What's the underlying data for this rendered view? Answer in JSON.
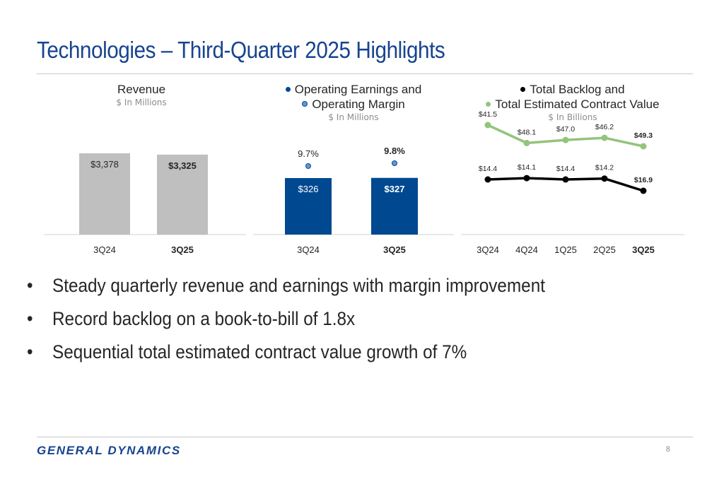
{
  "page": {
    "title": "Technologies – Third-Quarter 2025 Highlights",
    "bullet_char": "•",
    "bullets": [
      "Steady quarterly revenue and earnings with margin improvement",
      "Record backlog on a book-to-bill of 1.8x",
      "Sequential total estimated contract value growth of 7%"
    ],
    "logo": "GENERAL DYNAMICS",
    "page_number": "8"
  },
  "colors": {
    "title": "#17448f",
    "revenue_bar": "#bfbfbf",
    "earnings_bar": "#004990",
    "margin_marker": "#5b9bd5",
    "backlog_line": "#000000",
    "contract_line": "#93c47d"
  },
  "chart_data": [
    {
      "type": "bar",
      "title": "Revenue",
      "unit": "$ In Millions",
      "categories": [
        "3Q24",
        "3Q25"
      ],
      "values": [
        3378,
        3325
      ],
      "labels": [
        "$3,378",
        "$3,325"
      ],
      "ylim": [
        0,
        4200
      ],
      "grid": false
    },
    {
      "type": "bar",
      "title_lines": [
        "Operating Earnings and",
        "Operating Margin"
      ],
      "unit": "$ In Millions",
      "categories": [
        "3Q24",
        "3Q25"
      ],
      "series": [
        {
          "name": "Operating Earnings",
          "values": [
            326,
            327
          ],
          "labels": [
            "$326",
            "$327"
          ]
        },
        {
          "name": "Operating Margin",
          "values": [
            9.7,
            9.8
          ],
          "labels": [
            "9.7%",
            "9.8%"
          ]
        }
      ],
      "grid": false
    },
    {
      "type": "line",
      "title_lines": [
        "Total Backlog and",
        "Total Estimated Contract Value"
      ],
      "unit": "$ In Billions",
      "categories": [
        "3Q24",
        "4Q24",
        "1Q25",
        "2Q25",
        "3Q25"
      ],
      "series": [
        {
          "name": "Total Estimated Contract Value",
          "values": [
            41.5,
            48.1,
            47.0,
            46.2,
            49.3
          ],
          "labels": [
            "$41.5",
            "$48.1",
            "$47.0",
            "$46.2",
            "$49.3"
          ]
        },
        {
          "name": "Total Backlog",
          "values": [
            14.4,
            14.1,
            14.4,
            14.2,
            16.9
          ],
          "labels": [
            "$14.4",
            "$14.1",
            "$14.4",
            "$14.2",
            "$16.9"
          ]
        }
      ],
      "grid": false
    }
  ]
}
